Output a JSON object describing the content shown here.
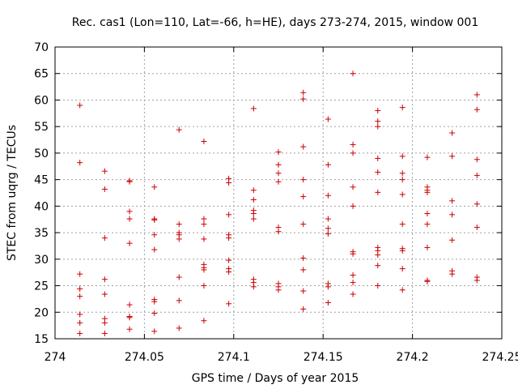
{
  "chart_data": {
    "type": "scatter",
    "title": "Rec. cas1 (Lon=110, Lat=-66, h=HE), days 273-274, 2015, window 001",
    "xlabel": "GPS time / Days of year 2015",
    "ylabel": "STEC from uqrg / TECUs",
    "xlim": [
      274,
      274.25
    ],
    "ylim": [
      15,
      70
    ],
    "xticks": [
      "274",
      "274.05",
      "274.1",
      "274.15",
      "274.2",
      "274.25"
    ],
    "yticks": [
      "15",
      "20",
      "25",
      "30",
      "35",
      "40",
      "45",
      "50",
      "55",
      "60",
      "65",
      "70"
    ],
    "grid": true,
    "marker": "plus",
    "color": "#cc0000",
    "points": [
      [
        274.0139,
        59.0
      ],
      [
        274.0139,
        48.2
      ],
      [
        274.0139,
        27.2
      ],
      [
        274.0139,
        24.4
      ],
      [
        274.0139,
        23.0
      ],
      [
        274.0139,
        19.6
      ],
      [
        274.0139,
        18.0
      ],
      [
        274.0139,
        16.0
      ],
      [
        274.0278,
        46.6
      ],
      [
        274.0278,
        43.2
      ],
      [
        274.0278,
        34.0
      ],
      [
        274.0278,
        26.2
      ],
      [
        274.0278,
        23.4
      ],
      [
        274.0278,
        18.8
      ],
      [
        274.0278,
        18.0
      ],
      [
        274.0278,
        16.0
      ],
      [
        274.0417,
        44.8
      ],
      [
        274.0417,
        44.6
      ],
      [
        274.0417,
        39.0
      ],
      [
        274.0417,
        37.6
      ],
      [
        274.0417,
        33.0
      ],
      [
        274.0417,
        21.4
      ],
      [
        274.0417,
        19.2
      ],
      [
        274.0417,
        19.0
      ],
      [
        274.0417,
        16.8
      ],
      [
        274.0556,
        43.6
      ],
      [
        274.0556,
        37.6
      ],
      [
        274.0556,
        37.4
      ],
      [
        274.0556,
        34.6
      ],
      [
        274.0556,
        31.8
      ],
      [
        274.0556,
        22.4
      ],
      [
        274.0556,
        22.0
      ],
      [
        274.0556,
        19.8
      ],
      [
        274.0556,
        16.4
      ],
      [
        274.0694,
        54.4
      ],
      [
        274.0694,
        36.6
      ],
      [
        274.0694,
        35.0
      ],
      [
        274.0694,
        34.6
      ],
      [
        274.0694,
        33.8
      ],
      [
        274.0694,
        26.6
      ],
      [
        274.0694,
        22.2
      ],
      [
        274.0694,
        17.0
      ],
      [
        274.0833,
        52.2
      ],
      [
        274.0833,
        37.6
      ],
      [
        274.0833,
        36.6
      ],
      [
        274.0833,
        33.8
      ],
      [
        274.0833,
        29.0
      ],
      [
        274.0833,
        28.4
      ],
      [
        274.0833,
        28.0
      ],
      [
        274.0833,
        25.0
      ],
      [
        274.0833,
        18.4
      ],
      [
        274.0972,
        45.2
      ],
      [
        274.0972,
        44.4
      ],
      [
        274.0972,
        38.4
      ],
      [
        274.0972,
        34.6
      ],
      [
        274.0972,
        34.0
      ],
      [
        274.0972,
        29.8
      ],
      [
        274.0972,
        28.2
      ],
      [
        274.0972,
        27.6
      ],
      [
        274.0972,
        21.6
      ],
      [
        274.1111,
        58.4
      ],
      [
        274.1111,
        43.0
      ],
      [
        274.1111,
        41.2
      ],
      [
        274.1111,
        39.2
      ],
      [
        274.1111,
        38.6
      ],
      [
        274.1111,
        37.6
      ],
      [
        274.1111,
        26.2
      ],
      [
        274.1111,
        25.6
      ],
      [
        274.1111,
        24.8
      ],
      [
        274.125,
        50.2
      ],
      [
        274.125,
        47.8
      ],
      [
        274.125,
        46.2
      ],
      [
        274.125,
        44.6
      ],
      [
        274.125,
        36.0
      ],
      [
        274.125,
        35.2
      ],
      [
        274.125,
        25.4
      ],
      [
        274.125,
        24.8
      ],
      [
        274.125,
        24.2
      ],
      [
        274.1389,
        61.4
      ],
      [
        274.1389,
        60.2
      ],
      [
        274.1389,
        51.2
      ],
      [
        274.1389,
        45.0
      ],
      [
        274.1389,
        41.8
      ],
      [
        274.1389,
        36.6
      ],
      [
        274.1389,
        30.2
      ],
      [
        274.1389,
        28.0
      ],
      [
        274.1389,
        24.0
      ],
      [
        274.1389,
        20.6
      ],
      [
        274.1528,
        56.4
      ],
      [
        274.1528,
        47.8
      ],
      [
        274.1528,
        42.0
      ],
      [
        274.1528,
        37.6
      ],
      [
        274.1528,
        35.8
      ],
      [
        274.1528,
        34.8
      ],
      [
        274.1528,
        25.4
      ],
      [
        274.1528,
        24.8
      ],
      [
        274.1528,
        21.8
      ],
      [
        274.1667,
        65.0
      ],
      [
        274.1667,
        51.6
      ],
      [
        274.1667,
        50.0
      ],
      [
        274.1667,
        43.6
      ],
      [
        274.1667,
        40.0
      ],
      [
        274.1667,
        31.4
      ],
      [
        274.1667,
        31.0
      ],
      [
        274.1667,
        27.0
      ],
      [
        274.1667,
        25.6
      ],
      [
        274.1667,
        23.4
      ],
      [
        274.1806,
        58.0
      ],
      [
        274.1806,
        56.0
      ],
      [
        274.1806,
        55.0
      ],
      [
        274.1806,
        49.0
      ],
      [
        274.1806,
        46.4
      ],
      [
        274.1806,
        42.6
      ],
      [
        274.1806,
        32.2
      ],
      [
        274.1806,
        31.6
      ],
      [
        274.1806,
        30.8
      ],
      [
        274.1806,
        28.8
      ],
      [
        274.1806,
        25.0
      ],
      [
        274.1944,
        58.6
      ],
      [
        274.1944,
        49.4
      ],
      [
        274.1944,
        46.2
      ],
      [
        274.1944,
        45.0
      ],
      [
        274.1944,
        42.2
      ],
      [
        274.1944,
        36.6
      ],
      [
        274.1944,
        32.0
      ],
      [
        274.1944,
        31.6
      ],
      [
        274.1944,
        28.2
      ],
      [
        274.1944,
        24.2
      ],
      [
        274.2083,
        49.2
      ],
      [
        274.2083,
        43.6
      ],
      [
        274.2083,
        43.0
      ],
      [
        274.2083,
        42.6
      ],
      [
        274.2083,
        38.6
      ],
      [
        274.2083,
        36.6
      ],
      [
        274.2083,
        32.2
      ],
      [
        274.2083,
        26.0
      ],
      [
        274.2083,
        25.8
      ],
      [
        274.2222,
        53.8
      ],
      [
        274.2222,
        49.4
      ],
      [
        274.2222,
        41.0
      ],
      [
        274.2222,
        38.4
      ],
      [
        274.2222,
        33.6
      ],
      [
        274.2222,
        27.8
      ],
      [
        274.2222,
        27.2
      ],
      [
        274.2361,
        61.0
      ],
      [
        274.2361,
        58.2
      ],
      [
        274.2361,
        48.8
      ],
      [
        274.2361,
        45.8
      ],
      [
        274.2361,
        40.4
      ],
      [
        274.2361,
        36.0
      ],
      [
        274.2361,
        26.6
      ],
      [
        274.2361,
        26.0
      ]
    ]
  }
}
